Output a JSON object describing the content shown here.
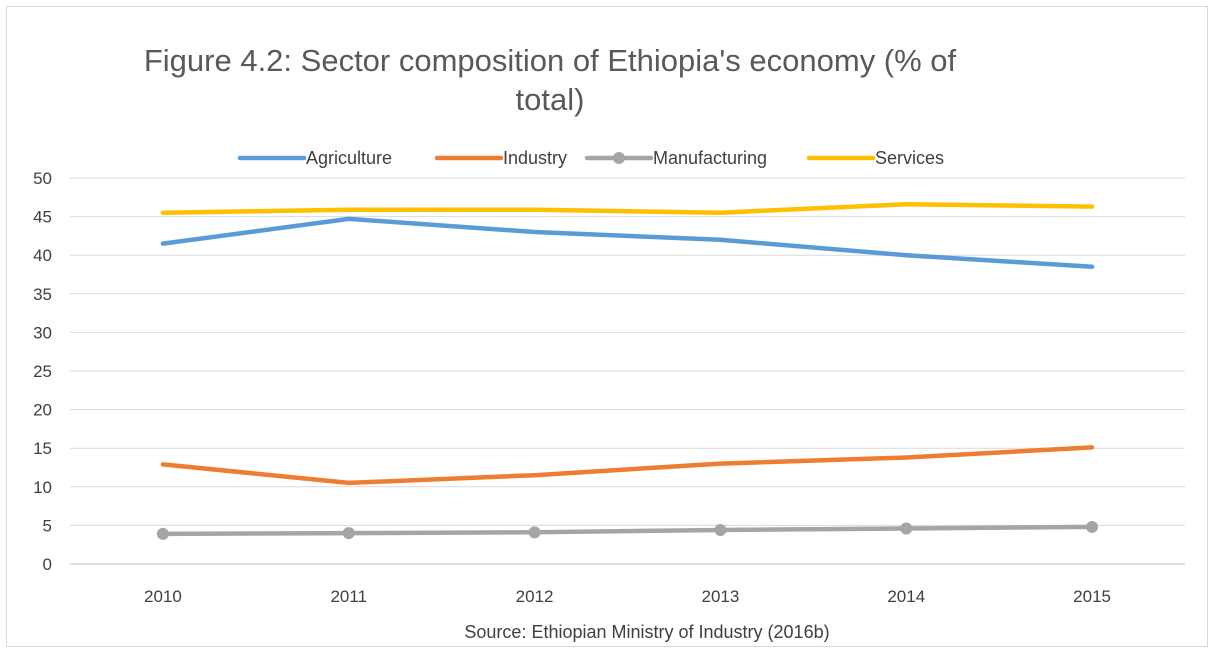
{
  "chart_data": {
    "type": "line",
    "title_line1": "Figure 4.2: Sector composition of Ethiopia's economy (% of",
    "title_line2": "total)",
    "source": "Source: Ethiopian Ministry of Industry (2016b)",
    "categories": [
      "2010",
      "2011",
      "2012",
      "2013",
      "2014",
      "2015"
    ],
    "ylim": [
      0,
      50
    ],
    "yticks": [
      0,
      5,
      10,
      15,
      20,
      25,
      30,
      35,
      40,
      45,
      50
    ],
    "grid": "horizontal",
    "legend_position": "top",
    "series": [
      {
        "name": "Agriculture",
        "color": "#5B9BD5",
        "markers": false,
        "values": [
          41.5,
          44.7,
          43.0,
          42.0,
          40.0,
          38.5
        ]
      },
      {
        "name": "Industry",
        "color": "#ED7D31",
        "markers": false,
        "values": [
          12.9,
          10.5,
          11.5,
          13.0,
          13.8,
          15.1
        ]
      },
      {
        "name": "Manufacturing",
        "color": "#A5A5A5",
        "markers": true,
        "values": [
          3.9,
          4.0,
          4.1,
          4.4,
          4.6,
          4.8
        ]
      },
      {
        "name": "Services",
        "color": "#FFC000",
        "markers": false,
        "values": [
          45.5,
          45.9,
          45.9,
          45.5,
          46.6,
          46.3
        ]
      }
    ]
  }
}
